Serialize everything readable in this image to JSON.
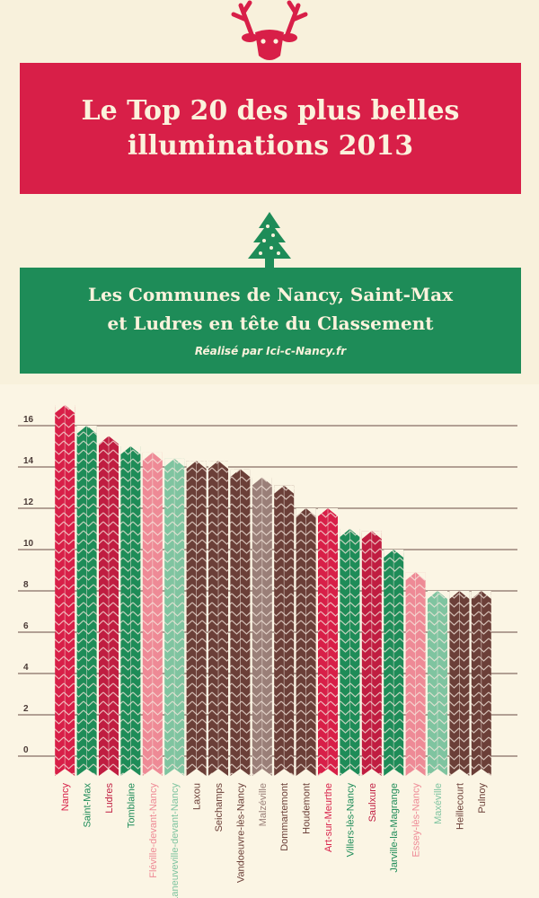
{
  "header": {
    "title_line1": "Le Top 20 des plus belles",
    "title_line2": "illuminations 2013",
    "subtitle_line1": "Les Communes de Nancy, Saint-Max",
    "subtitle_line2": "et Ludres en tête du Classement",
    "credit": "Réalisé par Ici-c-Nancy.fr"
  },
  "colors": {
    "red": "#d81f48",
    "green": "#1e8c58",
    "pink": "#ee8a96",
    "light_green": "#7fc4a0",
    "brown": "#6b3f38",
    "taupe": "#9a7f78",
    "background": "#fbf5e4"
  },
  "chart_data": {
    "type": "bar",
    "title": "",
    "xlabel": "",
    "ylabel": "",
    "ylim": [
      0,
      16
    ],
    "yticks": [
      0,
      2,
      4,
      6,
      8,
      10,
      12,
      14,
      16
    ],
    "grid": true,
    "categories": [
      "Nancy",
      "Saint-Max",
      "Ludres",
      "Tomblaine",
      "Fléville-devant-Nancy",
      "Laneuveville-devant-Nancy",
      "Laxou",
      "Seichamps",
      "Vandoeuvre-lès-Nancy",
      "Malzéville",
      "Dommartemont",
      "Houdemont",
      "Art-sur-Meurthe",
      "Villers-lès-Nancy",
      "Saulxure",
      "Jarville-la-Magrange",
      "Essey-lès-Nancy",
      "Maxéville",
      "Heillecourt",
      "Pulnoy"
    ],
    "values": [
      17,
      16,
      15.5,
      15,
      14.7,
      14.4,
      14.3,
      14.3,
      13.9,
      13.5,
      13.1,
      12,
      12,
      11,
      10.9,
      10,
      8.9,
      8,
      8,
      8
    ],
    "bar_colors": [
      "#d81f48",
      "#1e8c58",
      "#c01d41",
      "#1e8c58",
      "#ee8a96",
      "#7fc4a0",
      "#6b3f38",
      "#6b3f38",
      "#6b3f38",
      "#9a7f78",
      "#6b3f38",
      "#6b3f38",
      "#d81f48",
      "#1e8c58",
      "#c01d41",
      "#1e8c58",
      "#ee8a96",
      "#7fc4a0",
      "#6b3f38",
      "#6b3f38"
    ]
  }
}
